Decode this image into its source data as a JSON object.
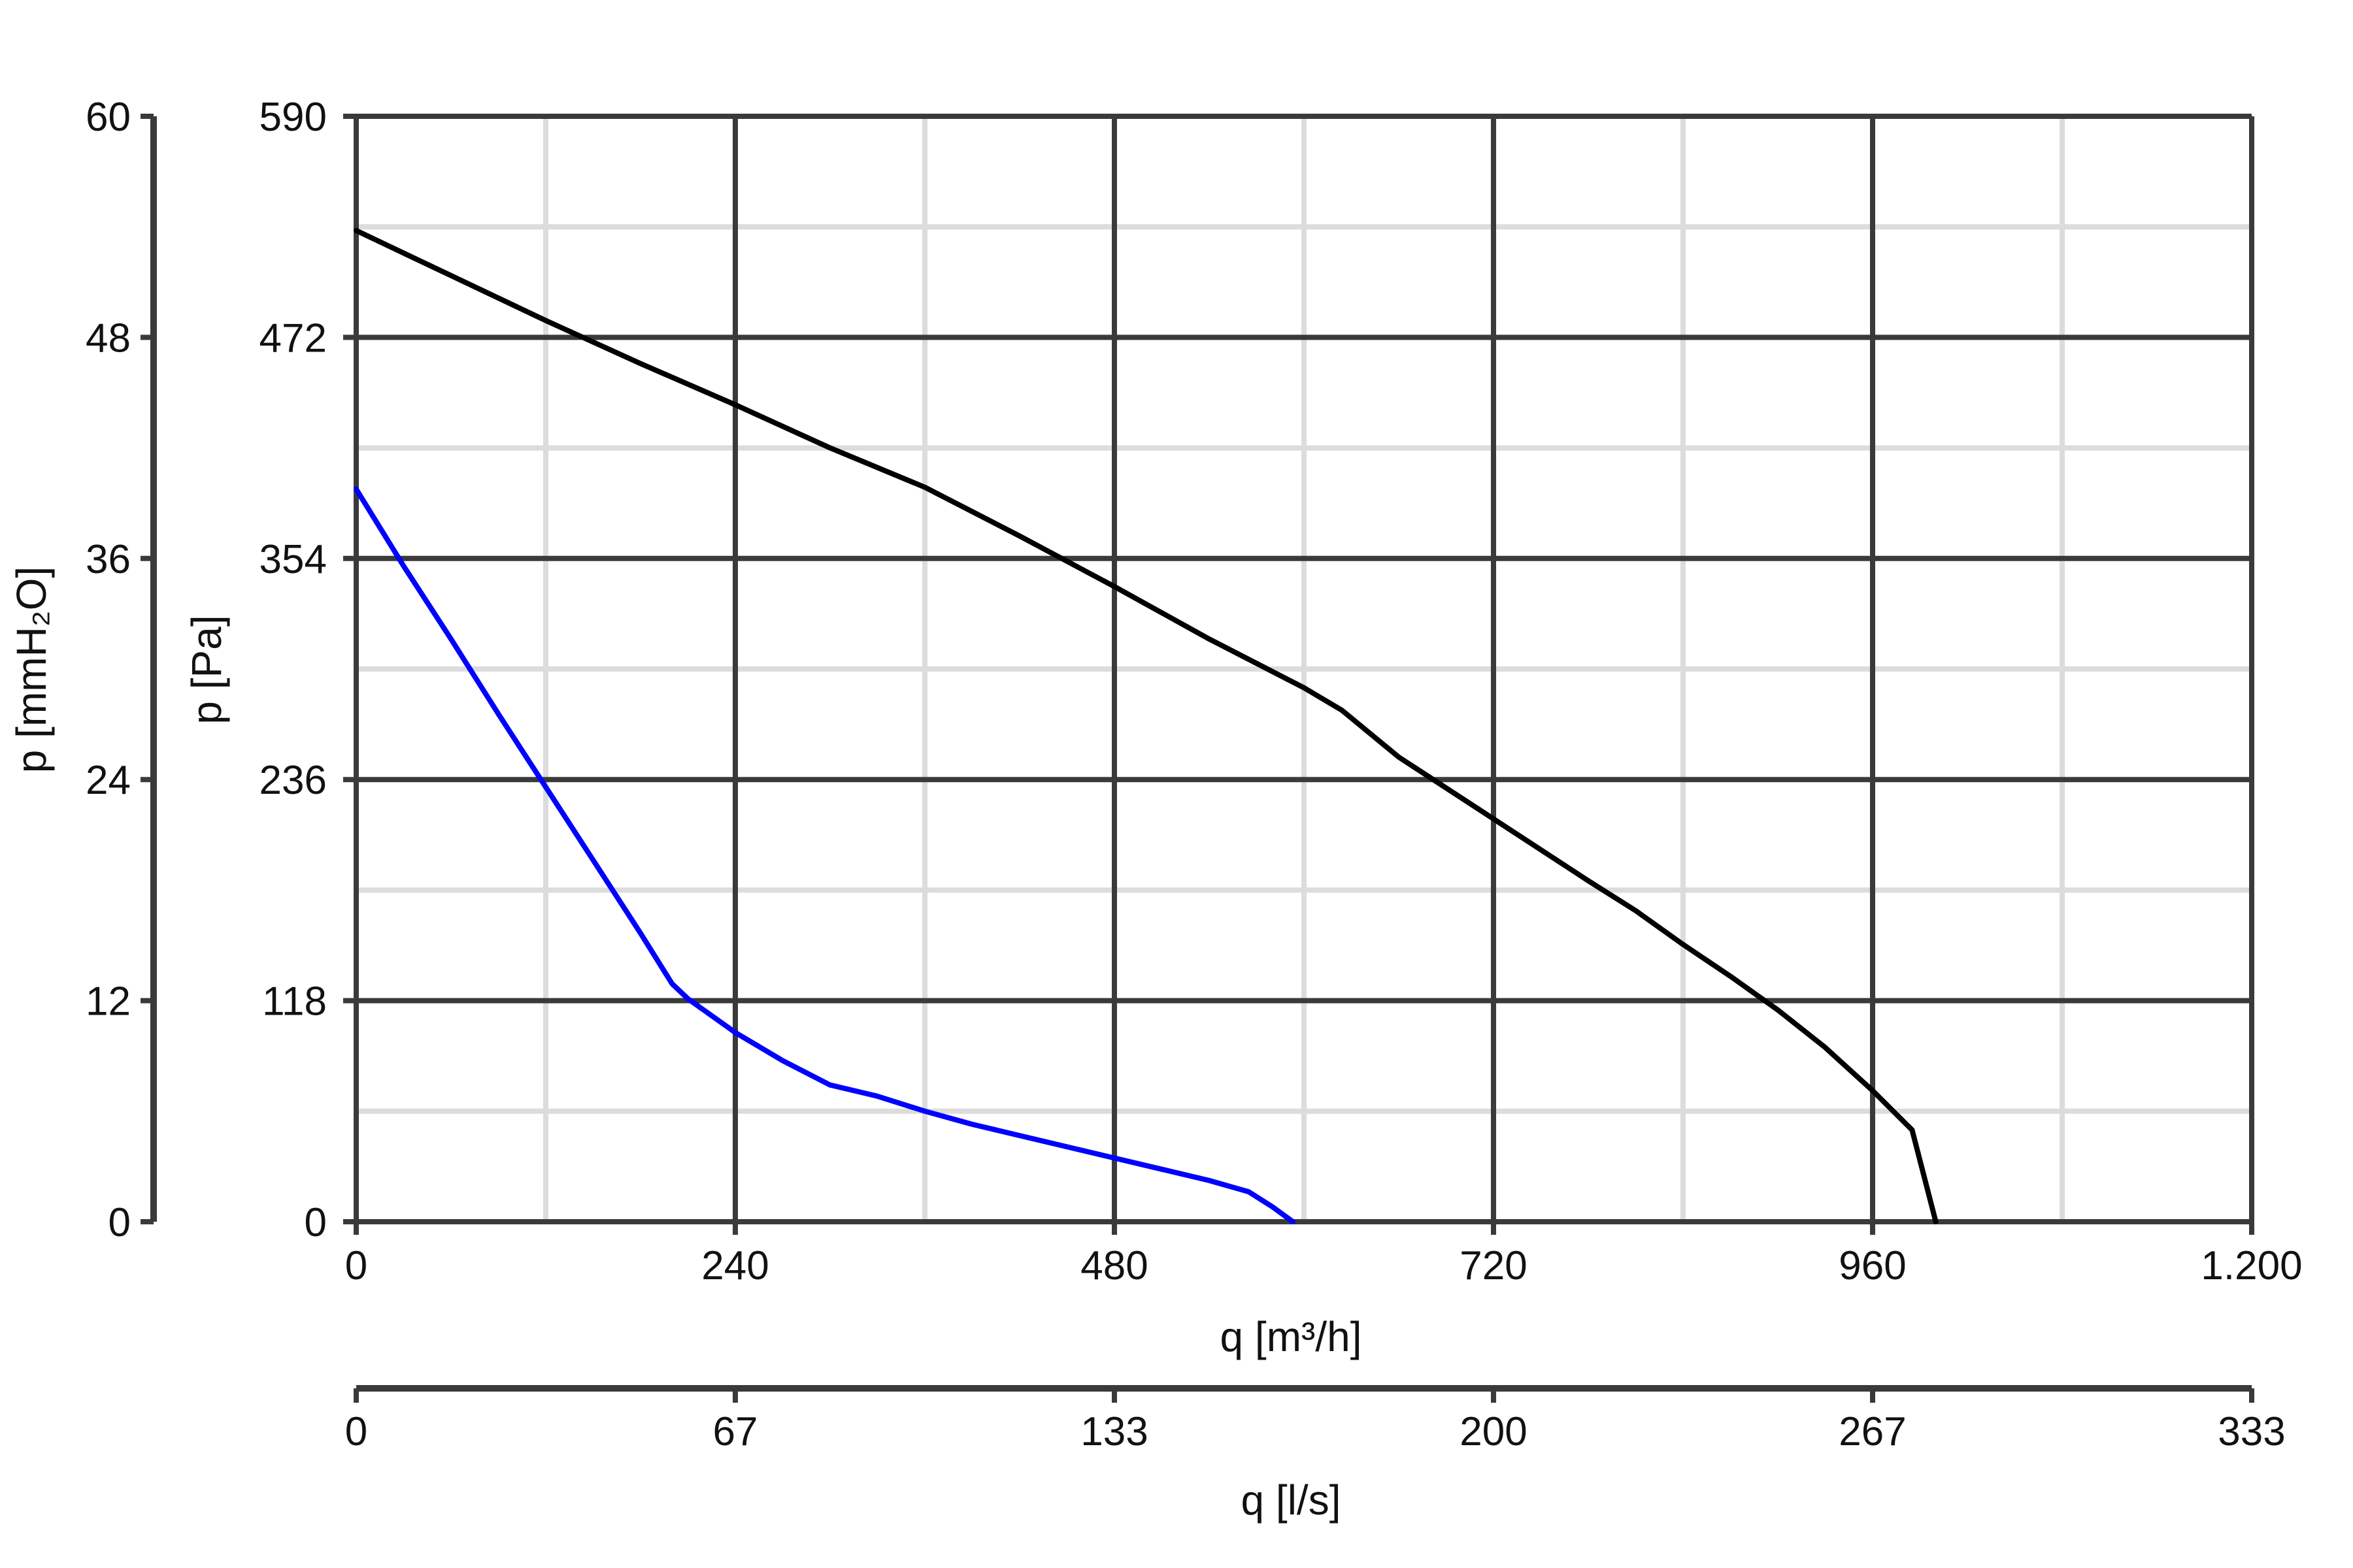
{
  "chart_data": {
    "type": "line",
    "grid": true,
    "x_axis": {
      "label": "q [m³/h]",
      "range": [
        0,
        1200
      ],
      "ticks": [
        0,
        240,
        480,
        720,
        960,
        1200
      ],
      "tick_labels": [
        "0",
        "240",
        "480",
        "720",
        "960",
        "1.200"
      ],
      "minor_ticks": [
        120,
        360,
        600,
        840,
        1080
      ]
    },
    "x_axis_secondary": {
      "label": "q [l/s]",
      "ticks": [
        0,
        240,
        480,
        720,
        960,
        1200
      ],
      "tick_labels": [
        "0",
        "67",
        "133",
        "200",
        "267",
        "333"
      ]
    },
    "y_axis": {
      "label": "p [Pa]",
      "range": [
        0,
        590
      ],
      "ticks": [
        0,
        118,
        236,
        354,
        472,
        590
      ],
      "tick_labels": [
        "0",
        "118",
        "236",
        "354",
        "472",
        "590"
      ],
      "minor_ticks": [
        59,
        177,
        295,
        413,
        531
      ]
    },
    "y_axis_secondary": {
      "label": "p [mmH₂O]",
      "ticks": [
        0,
        118,
        236,
        354,
        472,
        590
      ],
      "tick_labels": [
        "0",
        "12",
        "24",
        "36",
        "48",
        "60"
      ]
    },
    "series": [
      {
        "color": "#000000",
        "points": [
          [
            0,
            529
          ],
          [
            60,
            505
          ],
          [
            120,
            481
          ],
          [
            180,
            458
          ],
          [
            240,
            436
          ],
          [
            300,
            413
          ],
          [
            360,
            392
          ],
          [
            420,
            366
          ],
          [
            480,
            339
          ],
          [
            540,
            311
          ],
          [
            600,
            285
          ],
          [
            624,
            273
          ],
          [
            660,
            248
          ],
          [
            720,
            215
          ],
          [
            780,
            182
          ],
          [
            810,
            166
          ],
          [
            840,
            148
          ],
          [
            870,
            131
          ],
          [
            900,
            113
          ],
          [
            930,
            93
          ],
          [
            960,
            70
          ],
          [
            985,
            49
          ],
          [
            1000,
            0
          ]
        ]
      },
      {
        "color": "#0000ff",
        "points": [
          [
            0,
            391
          ],
          [
            30,
            350
          ],
          [
            60,
            311
          ],
          [
            90,
            271
          ],
          [
            120,
            232
          ],
          [
            150,
            193
          ],
          [
            180,
            154
          ],
          [
            200,
            127
          ],
          [
            210,
            119
          ],
          [
            240,
            101
          ],
          [
            270,
            86
          ],
          [
            300,
            73
          ],
          [
            330,
            67
          ],
          [
            360,
            59
          ],
          [
            390,
            52
          ],
          [
            420,
            46
          ],
          [
            480,
            34
          ],
          [
            510,
            28
          ],
          [
            540,
            22
          ],
          [
            565,
            16
          ],
          [
            580,
            8
          ],
          [
            593,
            0
          ]
        ]
      }
    ]
  }
}
